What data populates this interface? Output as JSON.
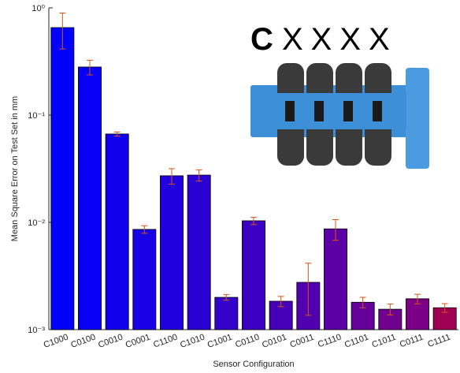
{
  "chart_data": {
    "type": "bar",
    "xlabel": "Sensor Configuration",
    "ylabel": "Mean Square Error on Test Set in mm",
    "inset_label": [
      "C",
      "XXXX"
    ],
    "categories": [
      "C1000",
      "C0100",
      "C0010",
      "C0001",
      "C1100",
      "C1010",
      "C1001",
      "C0110",
      "C0101",
      "C0011",
      "C1110",
      "C1101",
      "C1011",
      "C0111",
      "C1111"
    ],
    "values": [
      0.655,
      0.281,
      0.0667,
      0.0086,
      0.0272,
      0.0276,
      0.002,
      0.01035,
      0.00184,
      0.00276,
      0.0087,
      0.0018,
      0.00155,
      0.00194,
      0.0016
    ],
    "errors": [
      0.24,
      0.044,
      0.003,
      0.0007,
      0.0045,
      0.0033,
      0.00012,
      0.0008,
      0.0002,
      0.0014,
      0.0019,
      0.0002,
      0.00018,
      0.0002,
      0.00015
    ],
    "colors": [
      "#0000ff",
      "#0800f6",
      "#1000ee",
      "#1800e6",
      "#2200dd",
      "#2a00d4",
      "#3300cc",
      "#3c00c2",
      "#4600b8",
      "#5000ae",
      "#5a00a4",
      "#66009a",
      "#700090",
      "#7b0086",
      "#a00052"
    ],
    "error_color": "#d95319",
    "log_y": true,
    "ylim": [
      0.001,
      1
    ],
    "yticks": [
      {
        "value": 0.001,
        "label": "10⁻³"
      },
      {
        "value": 0.01,
        "label": "10⁻²"
      },
      {
        "value": 0.1,
        "label": "10⁻¹"
      },
      {
        "value": 1,
        "label": "10⁰"
      }
    ]
  }
}
